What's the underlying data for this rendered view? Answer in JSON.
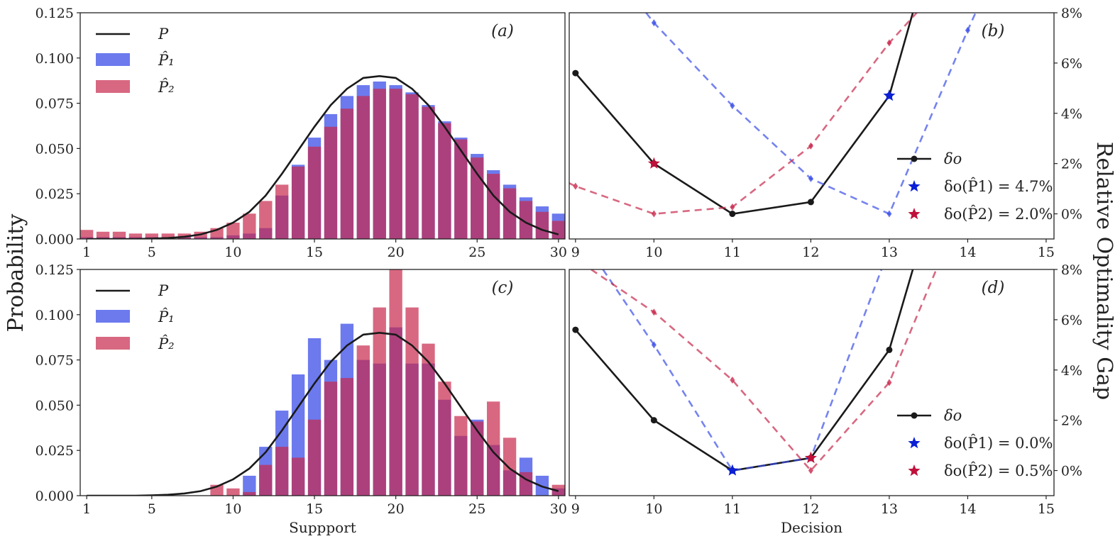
{
  "figure": {
    "ylabel_left": "Probability",
    "ylabel_right": "Relative Optimality Gap"
  },
  "colors": {
    "p_line": "#1a1a1a",
    "p1": "#3b4ee8",
    "p2": "#c8284c",
    "star_p1": "#0a1fd6",
    "star_p2": "#c0103a"
  },
  "chart_data": [
    {
      "panel": "(a)",
      "type": "bar",
      "title": "",
      "xlabel": "",
      "ylabel": "Probability",
      "xticks": [
        "1",
        "5",
        "10",
        "15",
        "20",
        "25",
        "30"
      ],
      "yticks": [
        "0.000",
        "0.025",
        "0.050",
        "0.075",
        "0.100",
        "0.125"
      ],
      "xlim": [
        0.6,
        30.4
      ],
      "ylim": [
        0,
        0.125
      ],
      "legend": [
        "P",
        "P̂₁",
        "P̂₂"
      ],
      "categories": [
        1,
        2,
        3,
        4,
        5,
        6,
        7,
        8,
        9,
        10,
        11,
        12,
        13,
        14,
        15,
        16,
        17,
        18,
        19,
        20,
        21,
        22,
        23,
        24,
        25,
        26,
        27,
        28,
        29,
        30
      ],
      "series": [
        {
          "name": "P̂₁",
          "values": [
            0.001,
            0.001,
            0.001,
            0.001,
            0.001,
            0.001,
            0.001,
            0.001,
            0.001,
            0.002,
            0.003,
            0.006,
            0.024,
            0.041,
            0.056,
            0.069,
            0.079,
            0.085,
            0.087,
            0.085,
            0.081,
            0.074,
            0.065,
            0.056,
            0.047,
            0.038,
            0.03,
            0.023,
            0.018,
            0.014
          ]
        },
        {
          "name": "P̂₂",
          "values": [
            0.005,
            0.004,
            0.004,
            0.003,
            0.003,
            0.003,
            0.003,
            0.004,
            0.006,
            0.009,
            0.014,
            0.021,
            0.03,
            0.04,
            0.051,
            0.062,
            0.072,
            0.079,
            0.083,
            0.083,
            0.08,
            0.073,
            0.064,
            0.055,
            0.045,
            0.036,
            0.028,
            0.021,
            0.015,
            0.01
          ]
        },
        {
          "name": "P",
          "values": [
            0,
            0,
            0,
            0,
            0.0002,
            0.0005,
            0.0012,
            0.0025,
            0.005,
            0.009,
            0.015,
            0.024,
            0.036,
            0.049,
            0.062,
            0.074,
            0.083,
            0.089,
            0.09,
            0.089,
            0.083,
            0.074,
            0.062,
            0.049,
            0.036,
            0.024,
            0.015,
            0.009,
            0.005,
            0.0025
          ]
        }
      ]
    },
    {
      "panel": "(b)",
      "type": "line",
      "title": "",
      "xlabel": "",
      "ylabel": "Relative Optimality Gap",
      "xticks": [
        "9",
        "10",
        "11",
        "12",
        "13",
        "14",
        "15"
      ],
      "yticks": [
        "0%",
        "2%",
        "4%",
        "6%",
        "8%"
      ],
      "xlim": [
        8.92,
        15.1
      ],
      "ylim": [
        -0.01,
        0.08
      ],
      "legend": [
        "δo",
        "δo(P̂1) = 4.7%",
        "δo(P̂2) = 2.0%"
      ],
      "series": [
        {
          "name": "δo",
          "x": [
            9,
            10,
            11,
            12,
            13,
            13.3
          ],
          "y": [
            0.056,
            0.02,
            0.0,
            0.0047,
            0.047,
            0.08
          ]
        },
        {
          "name": "P̂₁",
          "x": [
            9.9,
            10,
            11,
            12,
            13,
            14,
            14.1
          ],
          "y": [
            0.08,
            0.076,
            0.043,
            0.014,
            0.0,
            0.073,
            0.08
          ]
        },
        {
          "name": "P̂₂",
          "x": [
            8.9,
            9,
            10,
            11,
            12,
            13,
            13.35
          ],
          "y": [
            0.0125,
            0.011,
            0.0,
            0.0027,
            0.027,
            0.068,
            0.08
          ]
        }
      ],
      "stars": [
        {
          "name": "δo(P̂1)",
          "x": 13,
          "y": 0.047,
          "color": "star_p1"
        },
        {
          "name": "δo(P̂2)",
          "x": 10,
          "y": 0.02,
          "color": "star_p2"
        }
      ]
    },
    {
      "panel": "(c)",
      "type": "bar",
      "title": "",
      "xlabel": "Suppport",
      "ylabel": "Probability",
      "xticks": [
        "1",
        "5",
        "10",
        "15",
        "20",
        "25",
        "30"
      ],
      "yticks": [
        "0.000",
        "0.025",
        "0.050",
        "0.075",
        "0.100",
        "0.125"
      ],
      "xlim": [
        0.6,
        30.4
      ],
      "ylim": [
        0,
        0.125
      ],
      "legend": [
        "P",
        "P̂₁",
        "P̂₂"
      ],
      "categories": [
        1,
        2,
        3,
        4,
        5,
        6,
        7,
        8,
        9,
        10,
        11,
        12,
        13,
        14,
        15,
        16,
        17,
        18,
        19,
        20,
        21,
        22,
        23,
        24,
        25,
        26,
        27,
        28,
        29,
        30
      ],
      "series": [
        {
          "name": "P̂₁",
          "values": [
            0,
            0,
            0,
            0,
            0,
            0,
            0,
            0,
            0,
            0,
            0.011,
            0.027,
            0.047,
            0.067,
            0.087,
            0.075,
            0.095,
            0.075,
            0.073,
            0.093,
            0.073,
            0.073,
            0.053,
            0.033,
            0.042,
            0.028,
            0.014,
            0.021,
            0.011,
            0.004
          ]
        },
        {
          "name": "P̂₂",
          "values": [
            0,
            0,
            0,
            0,
            0,
            0,
            0,
            0,
            0.006,
            0.004,
            0.002,
            0.017,
            0.027,
            0.021,
            0.042,
            0.063,
            0.065,
            0.083,
            0.104,
            0.125,
            0.104,
            0.084,
            0.063,
            0.044,
            0.041,
            0.052,
            0.032,
            0.013,
            0.0,
            0.006
          ]
        },
        {
          "name": "P",
          "values": [
            0,
            0,
            0,
            0,
            0.0002,
            0.0005,
            0.0012,
            0.0025,
            0.005,
            0.009,
            0.015,
            0.024,
            0.036,
            0.049,
            0.062,
            0.074,
            0.083,
            0.089,
            0.09,
            0.089,
            0.083,
            0.074,
            0.062,
            0.049,
            0.036,
            0.024,
            0.015,
            0.009,
            0.005,
            0.0025
          ]
        }
      ]
    },
    {
      "panel": "(d)",
      "type": "line",
      "title": "",
      "xlabel": "Decision",
      "ylabel": "Relative Optimality Gap",
      "xticks": [
        "9",
        "10",
        "11",
        "12",
        "13",
        "14",
        "15"
      ],
      "yticks": [
        "0%",
        "2%",
        "4%",
        "6%",
        "8%"
      ],
      "xlim": [
        8.92,
        15.1
      ],
      "ylim": [
        -0.01,
        0.08
      ],
      "legend": [
        "δo",
        "δo(P̂1) = 0.0%",
        "δo(P̂2) = 0.5%"
      ],
      "series": [
        {
          "name": "δo",
          "x": [
            9,
            10,
            11,
            12,
            13,
            13.3
          ],
          "y": [
            0.056,
            0.02,
            0.0,
            0.005,
            0.048,
            0.08
          ]
        },
        {
          "name": "P̂₁",
          "x": [
            9.35,
            10,
            11,
            12,
            12.9
          ],
          "y": [
            0.08,
            0.05,
            0.0,
            0.005,
            0.08
          ]
        },
        {
          "name": "P̂₂",
          "x": [
            9.2,
            10,
            11,
            12,
            13,
            13.6
          ],
          "y": [
            0.08,
            0.063,
            0.036,
            0.0,
            0.035,
            0.08
          ]
        }
      ],
      "stars": [
        {
          "name": "δo(P̂1)",
          "x": 11,
          "y": 0.0,
          "color": "star_p1"
        },
        {
          "name": "δo(P̂2)",
          "x": 12,
          "y": 0.005,
          "color": "star_p2"
        }
      ]
    }
  ]
}
